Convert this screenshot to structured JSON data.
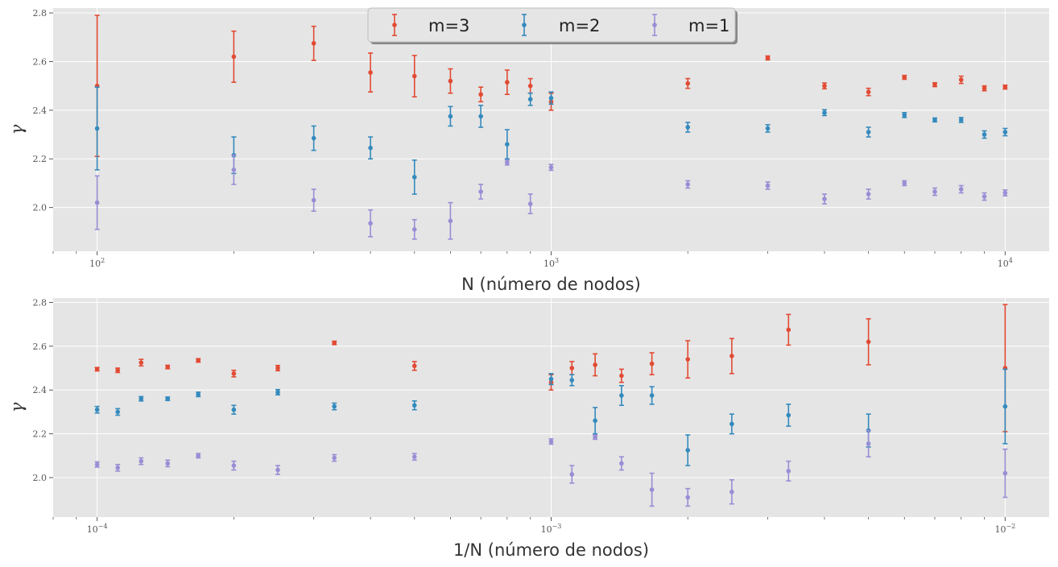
{
  "colors": {
    "m3": "#E24A33",
    "m2": "#348ABD",
    "m1": "#988ED5",
    "panel_bg": "#E5E5E5",
    "grid": "#FFFFFF"
  },
  "legend": {
    "entries": [
      "m=3",
      "m=2",
      "m=1"
    ],
    "placement": "top-center"
  },
  "chart_data": [
    {
      "type": "scatter",
      "xscale": "log",
      "xlim": [
        80,
        12500
      ],
      "ylim": [
        1.82,
        2.82
      ],
      "xlabel": "N (número de nodos)",
      "ylabel": "γ",
      "xticks": [
        {
          "value": 100,
          "base": "10",
          "exp": "2"
        },
        {
          "value": 1000,
          "base": "10",
          "exp": "3"
        },
        {
          "value": 10000,
          "base": "10",
          "exp": "4"
        }
      ],
      "yticks": [
        {
          "value": 2.0,
          "label": "2.0"
        },
        {
          "value": 2.2,
          "label": "2.2"
        },
        {
          "value": 2.4,
          "label": "2.4"
        },
        {
          "value": 2.6,
          "label": "2.6"
        },
        {
          "value": 2.8,
          "label": "2.8"
        }
      ],
      "grid": true,
      "series": [
        {
          "name": "m=3",
          "color": "#E24A33",
          "x": [
            100,
            200,
            300,
            400,
            500,
            600,
            700,
            800,
            900,
            1000,
            2000,
            3000,
            4000,
            5000,
            6000,
            7000,
            8000,
            9000,
            10000
          ],
          "y": [
            2.5,
            2.62,
            2.675,
            2.555,
            2.54,
            2.52,
            2.465,
            2.515,
            2.5,
            2.435,
            2.51,
            2.615,
            2.5,
            2.475,
            2.535,
            2.505,
            2.525,
            2.49,
            2.495
          ],
          "err": [
            0.29,
            0.105,
            0.07,
            0.08,
            0.085,
            0.05,
            0.03,
            0.05,
            0.03,
            0.035,
            0.02,
            0.008,
            0.012,
            0.015,
            0.008,
            0.008,
            0.015,
            0.01,
            0.008
          ]
        },
        {
          "name": "m=2",
          "color": "#348ABD",
          "x": [
            100,
            200,
            300,
            400,
            500,
            600,
            700,
            800,
            900,
            1000,
            2000,
            3000,
            4000,
            5000,
            6000,
            7000,
            8000,
            9000,
            10000
          ],
          "y": [
            2.325,
            2.215,
            2.285,
            2.245,
            2.125,
            2.375,
            2.375,
            2.26,
            2.445,
            2.45,
            2.33,
            2.325,
            2.39,
            2.31,
            2.38,
            2.36,
            2.36,
            2.3,
            2.31
          ],
          "err": [
            0.17,
            0.075,
            0.05,
            0.045,
            0.07,
            0.04,
            0.045,
            0.06,
            0.025,
            0.025,
            0.02,
            0.015,
            0.012,
            0.02,
            0.01,
            0.008,
            0.01,
            0.015,
            0.015
          ]
        },
        {
          "name": "m=1",
          "color": "#988ED5",
          "x": [
            100,
            200,
            300,
            400,
            500,
            600,
            700,
            800,
            900,
            1000,
            2000,
            3000,
            4000,
            5000,
            6000,
            7000,
            8000,
            9000,
            10000
          ],
          "y": [
            2.02,
            2.155,
            2.03,
            1.935,
            1.91,
            1.945,
            2.065,
            2.185,
            2.015,
            2.165,
            2.095,
            2.09,
            2.035,
            2.055,
            2.1,
            2.065,
            2.075,
            2.045,
            2.06
          ],
          "err": [
            0.11,
            0.06,
            0.045,
            0.055,
            0.04,
            0.075,
            0.03,
            0.01,
            0.04,
            0.012,
            0.015,
            0.015,
            0.02,
            0.02,
            0.01,
            0.015,
            0.015,
            0.015,
            0.012
          ]
        }
      ]
    },
    {
      "type": "scatter",
      "xscale": "log",
      "xlim": [
        8e-05,
        0.0125
      ],
      "ylim": [
        1.82,
        2.82
      ],
      "xlabel": "1/N (número de nodos)",
      "ylabel": "γ",
      "xticks": [
        {
          "value": 0.0001,
          "base": "10",
          "exp": "−4"
        },
        {
          "value": 0.001,
          "base": "10",
          "exp": "−3"
        },
        {
          "value": 0.01,
          "base": "10",
          "exp": "−2"
        }
      ],
      "yticks": [
        {
          "value": 2.0,
          "label": "2.0"
        },
        {
          "value": 2.2,
          "label": "2.2"
        },
        {
          "value": 2.4,
          "label": "2.4"
        },
        {
          "value": 2.6,
          "label": "2.6"
        },
        {
          "value": 2.8,
          "label": "2.8"
        }
      ],
      "grid": true,
      "series": [
        {
          "name": "m=3",
          "color": "#E24A33",
          "x": [
            0.01,
            0.005,
            0.003333,
            0.0025,
            0.002,
            0.001667,
            0.001429,
            0.00125,
            0.001111,
            0.001,
            0.0005,
            0.000333,
            0.00025,
            0.0002,
            0.000167,
            0.000143,
            0.000125,
            0.000111,
            0.0001
          ],
          "y": [
            2.5,
            2.62,
            2.675,
            2.555,
            2.54,
            2.52,
            2.465,
            2.515,
            2.5,
            2.435,
            2.51,
            2.615,
            2.5,
            2.475,
            2.535,
            2.505,
            2.525,
            2.49,
            2.495
          ],
          "err": [
            0.29,
            0.105,
            0.07,
            0.08,
            0.085,
            0.05,
            0.03,
            0.05,
            0.03,
            0.035,
            0.02,
            0.008,
            0.012,
            0.015,
            0.008,
            0.008,
            0.015,
            0.01,
            0.008
          ]
        },
        {
          "name": "m=2",
          "color": "#348ABD",
          "x": [
            0.01,
            0.005,
            0.003333,
            0.0025,
            0.002,
            0.001667,
            0.001429,
            0.00125,
            0.001111,
            0.001,
            0.0005,
            0.000333,
            0.00025,
            0.0002,
            0.000167,
            0.000143,
            0.000125,
            0.000111,
            0.0001
          ],
          "y": [
            2.325,
            2.215,
            2.285,
            2.245,
            2.125,
            2.375,
            2.375,
            2.26,
            2.445,
            2.45,
            2.33,
            2.325,
            2.39,
            2.31,
            2.38,
            2.36,
            2.36,
            2.3,
            2.31
          ],
          "err": [
            0.17,
            0.075,
            0.05,
            0.045,
            0.07,
            0.04,
            0.045,
            0.06,
            0.025,
            0.025,
            0.02,
            0.015,
            0.012,
            0.02,
            0.01,
            0.008,
            0.01,
            0.015,
            0.015
          ]
        },
        {
          "name": "m=1",
          "color": "#988ED5",
          "x": [
            0.01,
            0.005,
            0.003333,
            0.0025,
            0.002,
            0.001667,
            0.001429,
            0.00125,
            0.001111,
            0.001,
            0.0005,
            0.000333,
            0.00025,
            0.0002,
            0.000167,
            0.000143,
            0.000125,
            0.000111,
            0.0001
          ],
          "y": [
            2.02,
            2.155,
            2.03,
            1.935,
            1.91,
            1.945,
            2.065,
            2.185,
            2.015,
            2.165,
            2.095,
            2.09,
            2.035,
            2.055,
            2.1,
            2.065,
            2.075,
            2.045,
            2.06
          ],
          "err": [
            0.11,
            0.06,
            0.045,
            0.055,
            0.04,
            0.075,
            0.03,
            0.01,
            0.04,
            0.012,
            0.015,
            0.015,
            0.02,
            0.02,
            0.01,
            0.015,
            0.015,
            0.015,
            0.012
          ]
        }
      ]
    }
  ]
}
